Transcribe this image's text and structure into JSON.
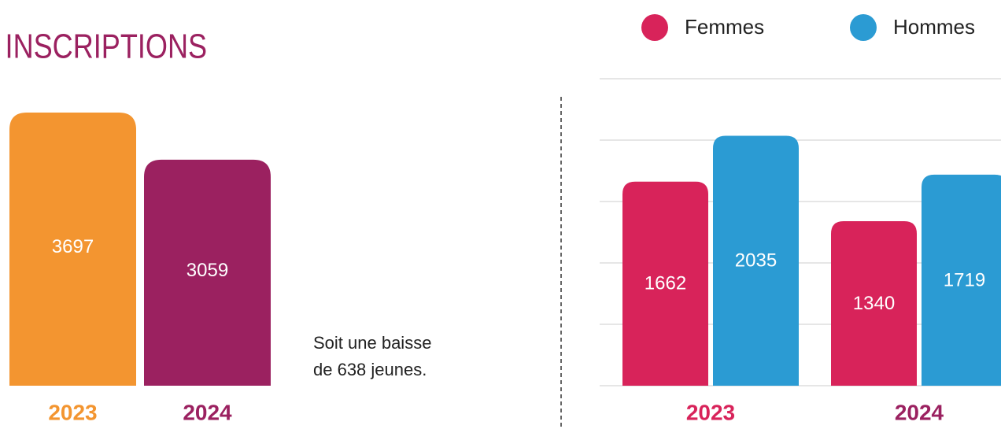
{
  "chart_data": [
    {
      "type": "bar",
      "title": "INSCRIPTIONS",
      "categories": [
        "2023",
        "2024"
      ],
      "values": [
        3697,
        3059
      ],
      "colors": [
        "#f39530",
        "#9b2160"
      ],
      "annotation": [
        "Soit une baisse",
        "de 638 jeunes."
      ]
    },
    {
      "type": "grouped-bar",
      "categories": [
        "2023",
        "2024"
      ],
      "label_colors": [
        "#d8235a",
        "#9b2160"
      ],
      "series": [
        {
          "name": "Femmes",
          "color": "#d8235a",
          "values": [
            1662,
            1340
          ]
        },
        {
          "name": "Hommes",
          "color": "#2b9bd3",
          "values": [
            2035,
            1719
          ]
        }
      ],
      "ylim": [
        0,
        2500
      ],
      "yticks": [
        0,
        500,
        1000,
        1500,
        2000,
        2500
      ],
      "grid": true
    }
  ]
}
